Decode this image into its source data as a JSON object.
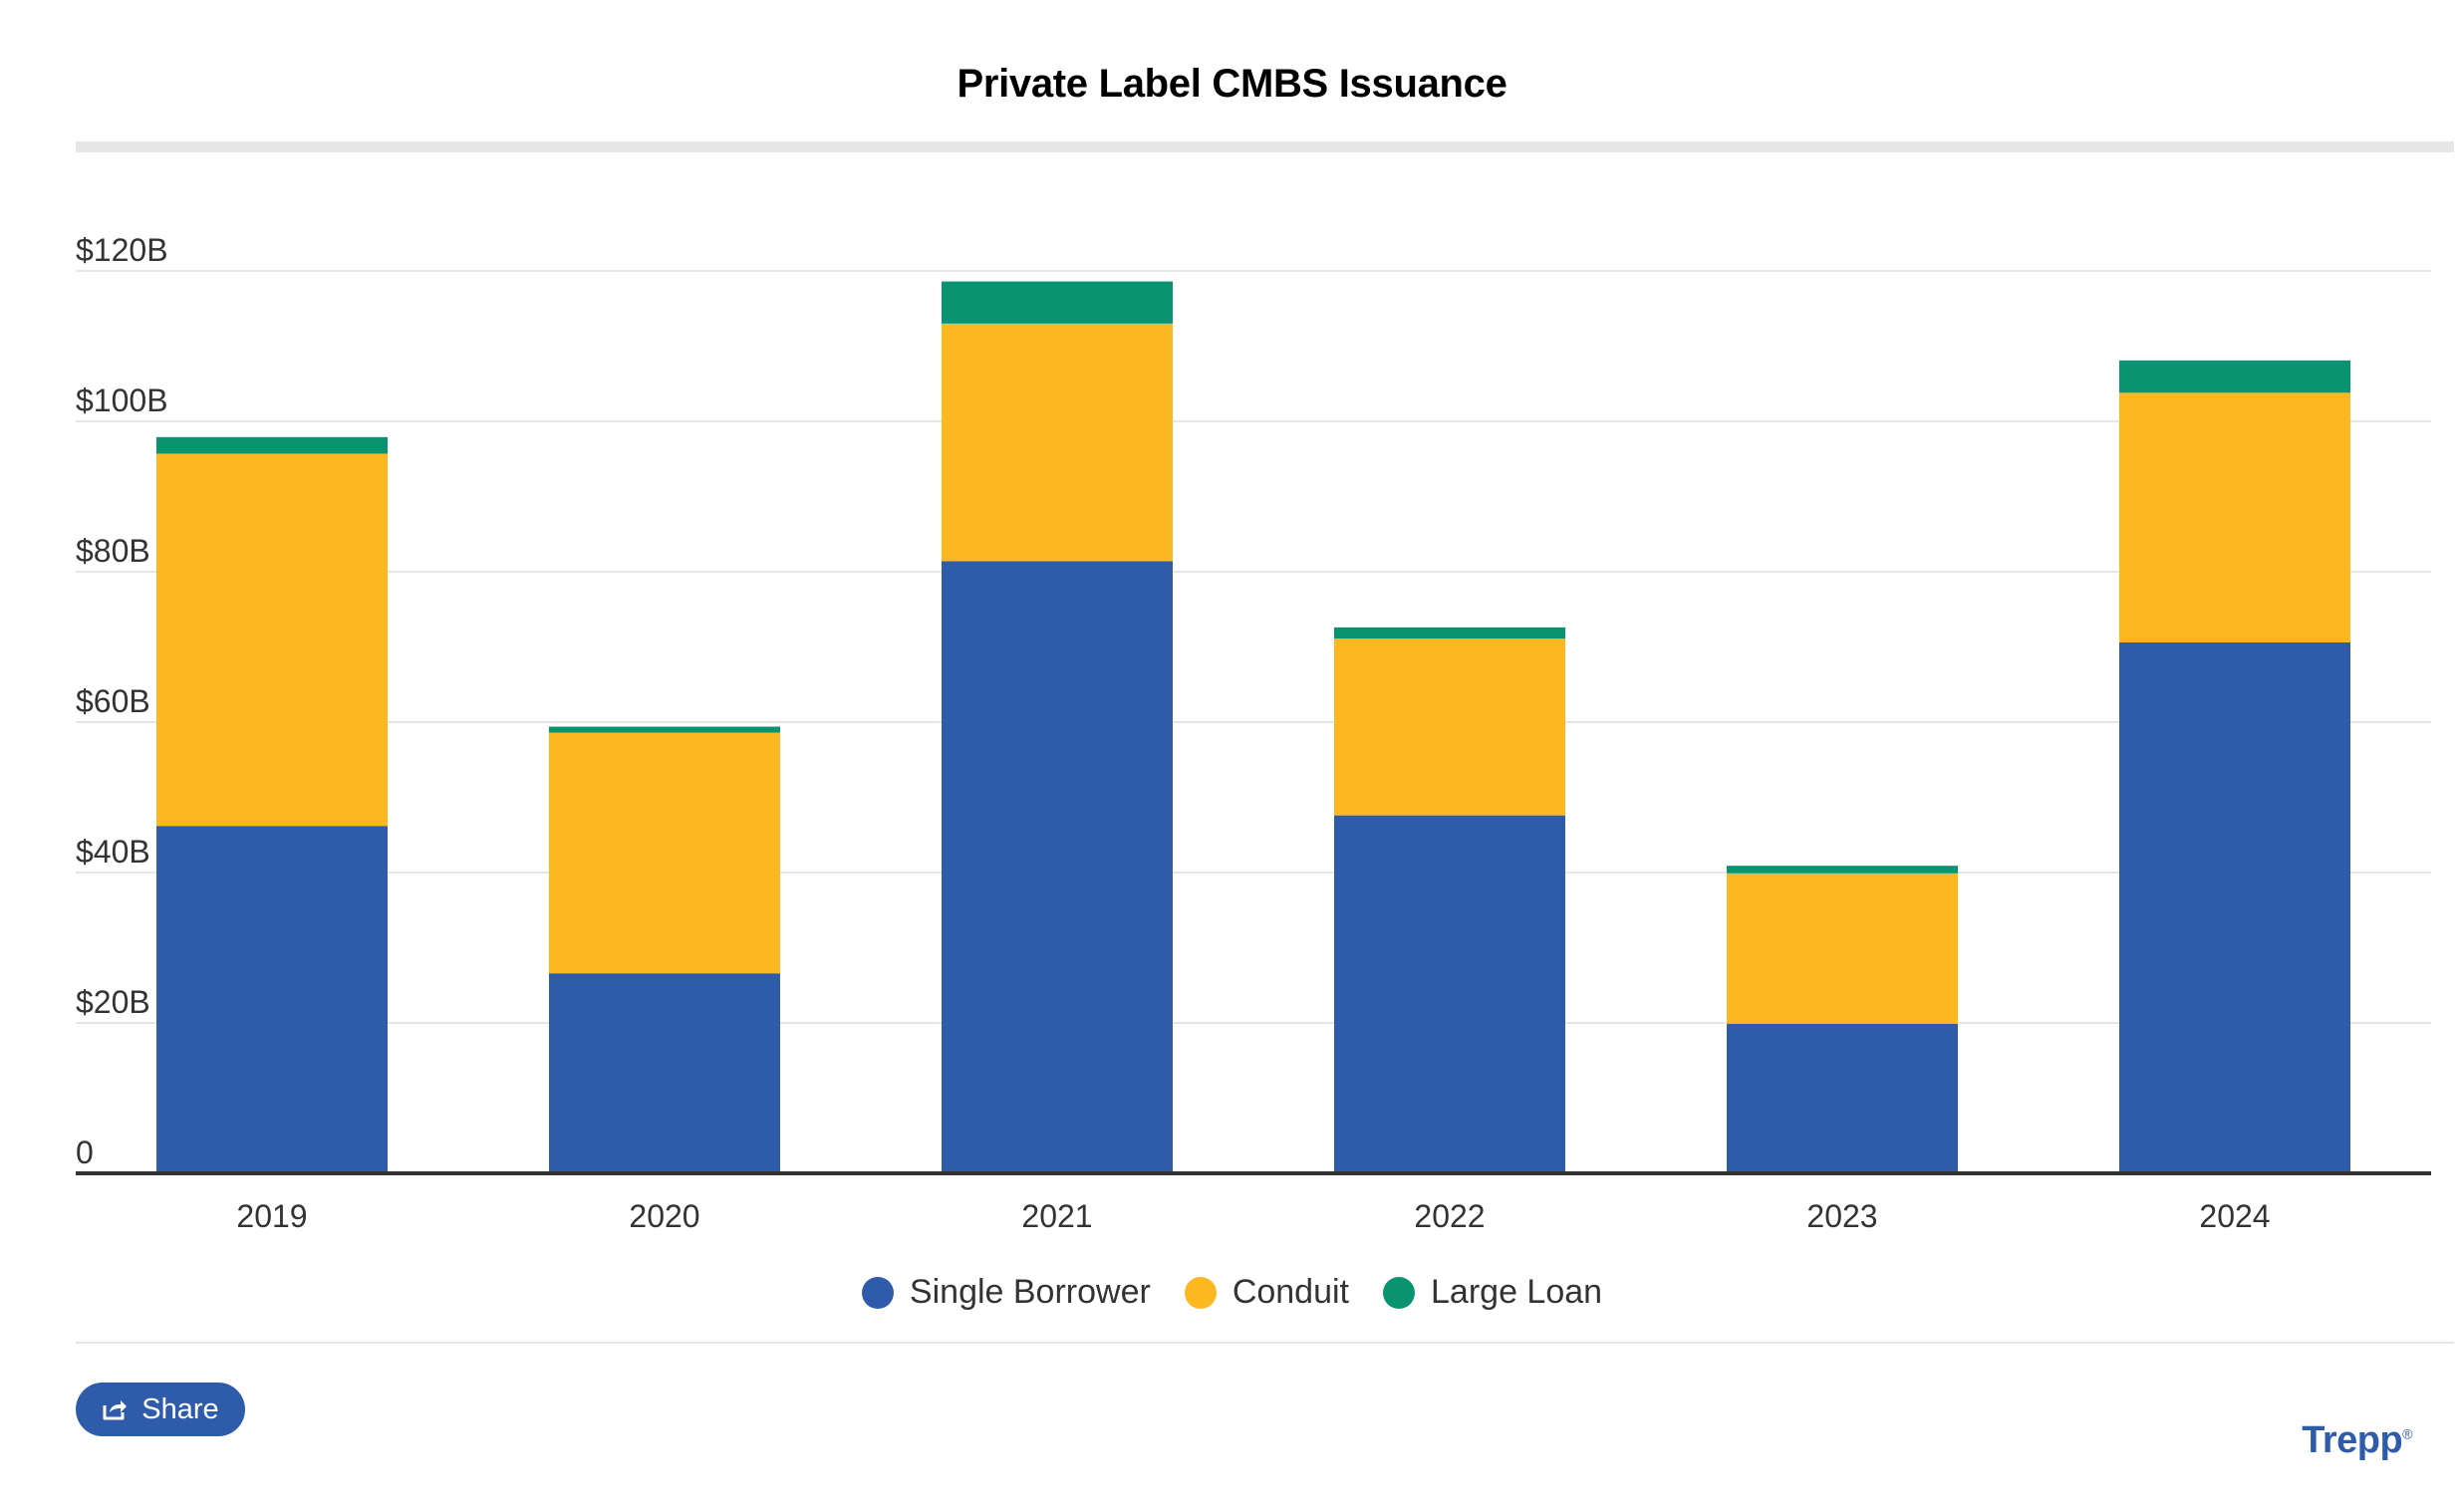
{
  "chart_data": {
    "type": "bar",
    "stacked": true,
    "title": "Private Label CMBS Issuance",
    "categories": [
      "2019",
      "2020",
      "2021",
      "2022",
      "2023",
      "2024"
    ],
    "series": [
      {
        "name": "Single Borrower",
        "color": "#2e5caa",
        "values": [
          46.2,
          26.6,
          81.4,
          47.6,
          19.9,
          70.6
        ]
      },
      {
        "name": "Conduit",
        "color": "#fdb721",
        "values": [
          49.5,
          32.0,
          31.6,
          23.5,
          20.0,
          33.2
        ]
      },
      {
        "name": "Large Loan",
        "color": "#0a9370",
        "values": [
          2.2,
          0.8,
          5.6,
          1.5,
          1.0,
          4.3
        ]
      }
    ],
    "yticks": [
      0,
      20,
      40,
      60,
      80,
      100,
      120
    ],
    "ytick_labels": [
      "0",
      "$20B",
      "$40B",
      "$60B",
      "$80B",
      "$100B",
      "$120B"
    ],
    "ylim": [
      0,
      120
    ],
    "grid": true,
    "legend": "bottom-center"
  },
  "share": {
    "label": "Share",
    "icon": "share-icon"
  },
  "brand": {
    "name": "Trepp",
    "mark": "®"
  }
}
